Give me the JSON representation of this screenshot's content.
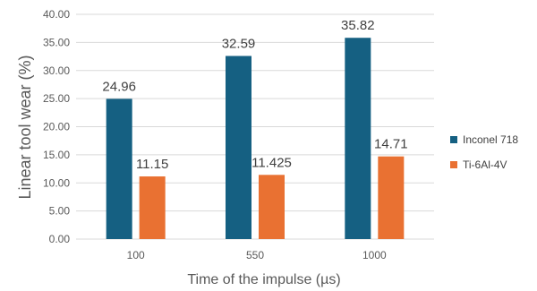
{
  "chart_data": {
    "type": "bar",
    "title": "",
    "xlabel": "Time of the impulse (µs)",
    "ylabel": "Linear tool wear (%)",
    "categories": [
      "100",
      "550",
      "1000"
    ],
    "ylim": [
      0,
      40
    ],
    "yticks": [
      "0.00",
      "5.00",
      "10.00",
      "15.00",
      "20.00",
      "25.00",
      "30.00",
      "35.00",
      "40.00"
    ],
    "grid": true,
    "legend_position": "right",
    "series": [
      {
        "name": "Inconel 718",
        "color": "#156082",
        "values": [
          24.96,
          32.59,
          35.82
        ],
        "labels": [
          "24.96",
          "32.59",
          "35.82"
        ]
      },
      {
        "name": "Ti-6Al-4V",
        "color": "#E97132",
        "values": [
          11.15,
          11.425,
          14.71
        ],
        "labels": [
          "11.15",
          "11.425",
          "14.71"
        ]
      }
    ]
  }
}
